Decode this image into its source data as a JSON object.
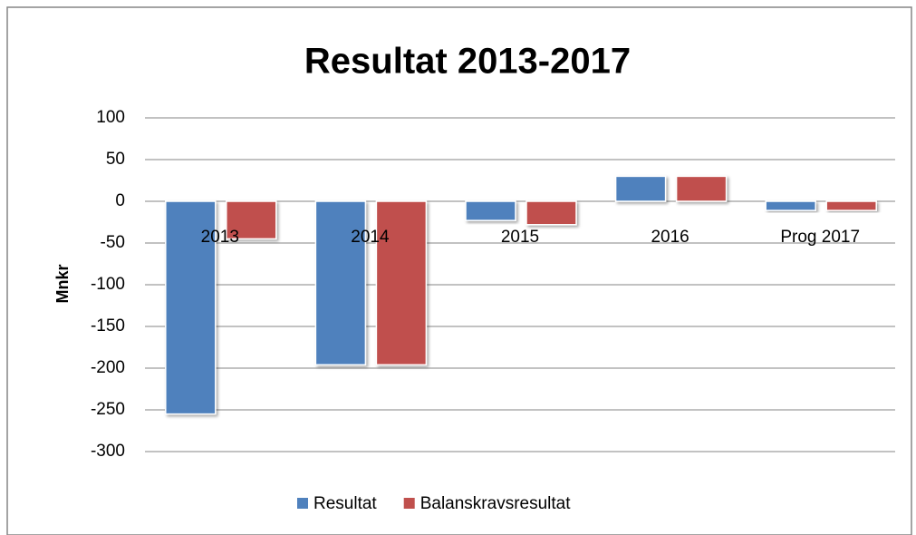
{
  "chart_data": {
    "type": "bar",
    "title": "Resultat 2013-2017",
    "y_label": "Mnkr",
    "categories": [
      "2013",
      "2014",
      "2015",
      "2016",
      "Prog 2017"
    ],
    "series": [
      {
        "name": "Resultat",
        "color": "#4f81bd",
        "values": [
          -255,
          -196,
          -23,
          30,
          -11
        ]
      },
      {
        "name": "Balanskravsresultat",
        "color": "#c0504d",
        "values": [
          -45,
          -196,
          -28,
          30,
          -11
        ]
      }
    ],
    "ylim": [
      -300,
      100
    ],
    "yticks": [
      -300,
      -250,
      -200,
      -150,
      -100,
      -50,
      0,
      50,
      100
    ],
    "grid": true,
    "legend": "bottom"
  }
}
